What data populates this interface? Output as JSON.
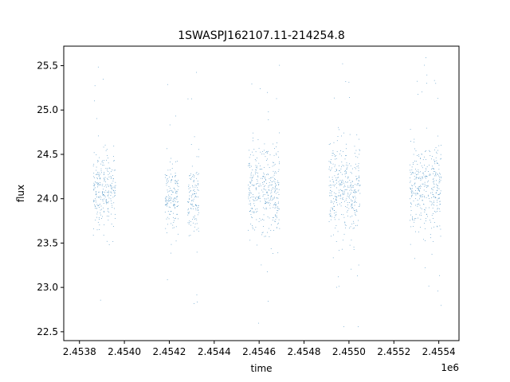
{
  "chart_data": {
    "type": "scatter",
    "title": "1SWASPJ162107.11-214254.8",
    "xlabel": "time",
    "ylabel": "flux",
    "x_offset_label": "1e6",
    "xlim": [
      2.45373,
      2.45549
    ],
    "ylim": [
      22.4,
      25.72
    ],
    "x_ticks": [
      {
        "value": 2.4538,
        "label": "2.4538"
      },
      {
        "value": 2.454,
        "label": "2.4540"
      },
      {
        "value": 2.4542,
        "label": "2.4542"
      },
      {
        "value": 2.4544,
        "label": "2.4544"
      },
      {
        "value": 2.4546,
        "label": "2.4546"
      },
      {
        "value": 2.4548,
        "label": "2.4548"
      },
      {
        "value": 2.455,
        "label": "2.4550"
      },
      {
        "value": 2.4552,
        "label": "2.4552"
      },
      {
        "value": 2.4554,
        "label": "2.4554"
      }
    ],
    "y_ticks": [
      {
        "value": 22.5,
        "label": "22.5"
      },
      {
        "value": 23.0,
        "label": "23.0"
      },
      {
        "value": 23.5,
        "label": "23.5"
      },
      {
        "value": 24.0,
        "label": "24.0"
      },
      {
        "value": 24.5,
        "label": "24.5"
      },
      {
        "value": 25.0,
        "label": "25.0"
      },
      {
        "value": 25.5,
        "label": "25.5"
      }
    ],
    "grid": false,
    "legend": "none",
    "marker_color": "#1f77b4",
    "clusters": [
      {
        "x_start": 2.45386,
        "x_end": 2.45396,
        "y_center": 24.1,
        "y_spread": 0.22,
        "y_min": 22.55,
        "y_max": 25.58
      },
      {
        "x_start": 2.45418,
        "x_end": 2.45424,
        "y_center": 24.0,
        "y_spread": 0.18,
        "y_min": 23.0,
        "y_max": 25.45
      },
      {
        "x_start": 2.45428,
        "x_end": 2.45433,
        "y_center": 24.0,
        "y_spread": 0.2,
        "y_min": 22.58,
        "y_max": 25.5
      },
      {
        "x_start": 2.45455,
        "x_end": 2.45469,
        "y_center": 24.1,
        "y_spread": 0.25,
        "y_min": 22.55,
        "y_max": 25.55
      },
      {
        "x_start": 2.45491,
        "x_end": 2.45505,
        "y_center": 24.1,
        "y_spread": 0.26,
        "y_min": 22.55,
        "y_max": 25.6
      },
      {
        "x_start": 2.45527,
        "x_end": 2.45541,
        "y_center": 24.1,
        "y_spread": 0.24,
        "y_min": 22.6,
        "y_max": 25.6
      }
    ]
  }
}
